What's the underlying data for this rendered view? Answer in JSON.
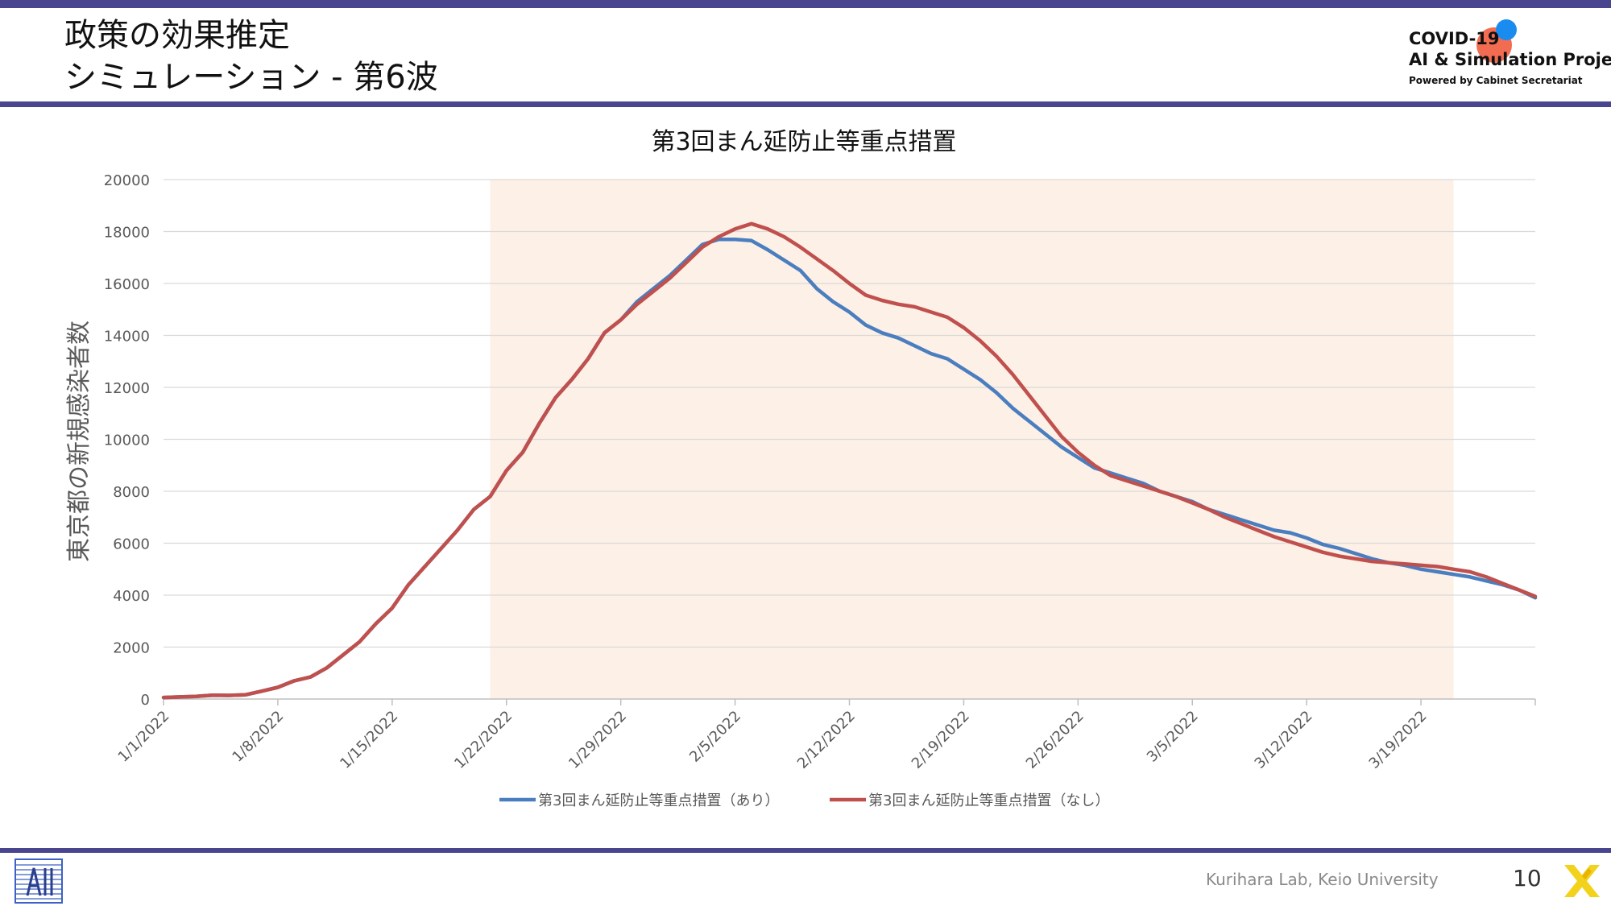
{
  "slide": {
    "title_line1": "政策の効果推定",
    "title_line2": "シミュレーション - 第6波"
  },
  "logo": {
    "line1": "COVID-19",
    "line2": "AI & Simulation Project",
    "line3": "Powered by Cabinet Secretariat"
  },
  "footer": {
    "lab": "Kurihara Lab, Keio University",
    "page": "10"
  },
  "colors": {
    "accent_bar": "#49468f",
    "series_with": "#4a7ebf",
    "series_without": "#c0504d",
    "shaded_period": "#fdf0e6"
  },
  "chart_data": {
    "type": "line",
    "title": "第3回まん延防止等重点措置",
    "ylabel": "東京都の新規感染者数",
    "xlabel": "",
    "ylim": [
      0,
      20000
    ],
    "yticks": [
      0,
      2000,
      4000,
      6000,
      8000,
      10000,
      12000,
      14000,
      16000,
      18000,
      20000
    ],
    "x_start": "1/1/2022",
    "x_end": "3/26/2022",
    "x_tick_labels": [
      "1/1/2022",
      "1/8/2022",
      "1/15/2022",
      "1/22/2022",
      "1/29/2022",
      "2/5/2022",
      "2/12/2022",
      "2/19/2022",
      "2/26/2022",
      "3/5/2022",
      "3/12/2022",
      "3/19/2022"
    ],
    "shaded_period": [
      "1/21/2022",
      "3/21/2022"
    ],
    "grid": true,
    "legend_position": "bottom",
    "series": [
      {
        "name": "第3回まん延防止等重点措置（あり）",
        "color": "#4a7ebf",
        "points": [
          [
            "1/1/2022",
            60
          ],
          [
            "1/2/2022",
            80
          ],
          [
            "1/3/2022",
            100
          ],
          [
            "1/4/2022",
            150
          ],
          [
            "1/5/2022",
            140
          ],
          [
            "1/6/2022",
            160
          ],
          [
            "1/7/2022",
            300
          ],
          [
            "1/8/2022",
            450
          ],
          [
            "1/9/2022",
            700
          ],
          [
            "1/10/2022",
            850
          ],
          [
            "1/11/2022",
            1200
          ],
          [
            "1/12/2022",
            1700
          ],
          [
            "1/13/2022",
            2200
          ],
          [
            "1/14/2022",
            2900
          ],
          [
            "1/15/2022",
            3500
          ],
          [
            "1/16/2022",
            4400
          ],
          [
            "1/17/2022",
            5100
          ],
          [
            "1/18/2022",
            5800
          ],
          [
            "1/19/2022",
            6500
          ],
          [
            "1/20/2022",
            7300
          ],
          [
            "1/21/2022",
            7800
          ],
          [
            "1/22/2022",
            8800
          ],
          [
            "1/23/2022",
            9500
          ],
          [
            "1/24/2022",
            10600
          ],
          [
            "1/25/2022",
            11600
          ],
          [
            "1/26/2022",
            12300
          ],
          [
            "1/27/2022",
            13100
          ],
          [
            "1/28/2022",
            14100
          ],
          [
            "1/29/2022",
            14600
          ],
          [
            "1/30/2022",
            15300
          ],
          [
            "1/31/2022",
            15800
          ],
          [
            "2/1/2022",
            16300
          ],
          [
            "2/2/2022",
            16900
          ],
          [
            "2/3/2022",
            17500
          ],
          [
            "2/4/2022",
            17700
          ],
          [
            "2/5/2022",
            17700
          ],
          [
            "2/6/2022",
            17650
          ],
          [
            "2/7/2022",
            17300
          ],
          [
            "2/8/2022",
            16900
          ],
          [
            "2/9/2022",
            16500
          ],
          [
            "2/10/2022",
            15800
          ],
          [
            "2/11/2022",
            15300
          ],
          [
            "2/12/2022",
            14900
          ],
          [
            "2/13/2022",
            14400
          ],
          [
            "2/14/2022",
            14100
          ],
          [
            "2/15/2022",
            13900
          ],
          [
            "2/16/2022",
            13600
          ],
          [
            "2/17/2022",
            13300
          ],
          [
            "2/18/2022",
            13100
          ],
          [
            "2/19/2022",
            12700
          ],
          [
            "2/20/2022",
            12300
          ],
          [
            "2/21/2022",
            11800
          ],
          [
            "2/22/2022",
            11200
          ],
          [
            "2/23/2022",
            10700
          ],
          [
            "2/24/2022",
            10200
          ],
          [
            "2/25/2022",
            9700
          ],
          [
            "2/26/2022",
            9300
          ],
          [
            "2/27/2022",
            8900
          ],
          [
            "2/28/2022",
            8700
          ],
          [
            "3/1/2022",
            8500
          ],
          [
            "3/2/2022",
            8300
          ],
          [
            "3/3/2022",
            8000
          ],
          [
            "3/4/2022",
            7800
          ],
          [
            "3/5/2022",
            7600
          ],
          [
            "3/6/2022",
            7300
          ],
          [
            "3/7/2022",
            7100
          ],
          [
            "3/8/2022",
            6900
          ],
          [
            "3/9/2022",
            6700
          ],
          [
            "3/10/2022",
            6500
          ],
          [
            "3/11/2022",
            6400
          ],
          [
            "3/12/2022",
            6200
          ],
          [
            "3/13/2022",
            5950
          ],
          [
            "3/14/2022",
            5800
          ],
          [
            "3/15/2022",
            5600
          ],
          [
            "3/16/2022",
            5400
          ],
          [
            "3/17/2022",
            5250
          ],
          [
            "3/18/2022",
            5150
          ],
          [
            "3/19/2022",
            5000
          ],
          [
            "3/20/2022",
            4900
          ],
          [
            "3/21/2022",
            4800
          ],
          [
            "3/22/2022",
            4700
          ],
          [
            "3/23/2022",
            4550
          ],
          [
            "3/24/2022",
            4400
          ],
          [
            "3/25/2022",
            4200
          ],
          [
            "3/26/2022",
            3900
          ]
        ]
      },
      {
        "name": "第3回まん延防止等重点措置（なし）",
        "color": "#c0504d",
        "points": [
          [
            "1/1/2022",
            60
          ],
          [
            "1/2/2022",
            80
          ],
          [
            "1/3/2022",
            100
          ],
          [
            "1/4/2022",
            150
          ],
          [
            "1/5/2022",
            140
          ],
          [
            "1/6/2022",
            160
          ],
          [
            "1/7/2022",
            300
          ],
          [
            "1/8/2022",
            450
          ],
          [
            "1/9/2022",
            700
          ],
          [
            "1/10/2022",
            850
          ],
          [
            "1/11/2022",
            1200
          ],
          [
            "1/12/2022",
            1700
          ],
          [
            "1/13/2022",
            2200
          ],
          [
            "1/14/2022",
            2900
          ],
          [
            "1/15/2022",
            3500
          ],
          [
            "1/16/2022",
            4400
          ],
          [
            "1/17/2022",
            5100
          ],
          [
            "1/18/2022",
            5800
          ],
          [
            "1/19/2022",
            6500
          ],
          [
            "1/20/2022",
            7300
          ],
          [
            "1/21/2022",
            7800
          ],
          [
            "1/22/2022",
            8800
          ],
          [
            "1/23/2022",
            9500
          ],
          [
            "1/24/2022",
            10600
          ],
          [
            "1/25/2022",
            11600
          ],
          [
            "1/26/2022",
            12300
          ],
          [
            "1/27/2022",
            13100
          ],
          [
            "1/28/2022",
            14100
          ],
          [
            "1/29/2022",
            14600
          ],
          [
            "1/30/2022",
            15200
          ],
          [
            "1/31/2022",
            15700
          ],
          [
            "2/1/2022",
            16200
          ],
          [
            "2/2/2022",
            16800
          ],
          [
            "2/3/2022",
            17400
          ],
          [
            "2/4/2022",
            17800
          ],
          [
            "2/5/2022",
            18100
          ],
          [
            "2/6/2022",
            18300
          ],
          [
            "2/7/2022",
            18100
          ],
          [
            "2/8/2022",
            17800
          ],
          [
            "2/9/2022",
            17400
          ],
          [
            "2/10/2022",
            16950
          ],
          [
            "2/11/2022",
            16500
          ],
          [
            "2/12/2022",
            16000
          ],
          [
            "2/13/2022",
            15550
          ],
          [
            "2/14/2022",
            15350
          ],
          [
            "2/15/2022",
            15200
          ],
          [
            "2/16/2022",
            15100
          ],
          [
            "2/17/2022",
            14900
          ],
          [
            "2/18/2022",
            14700
          ],
          [
            "2/19/2022",
            14300
          ],
          [
            "2/20/2022",
            13800
          ],
          [
            "2/21/2022",
            13200
          ],
          [
            "2/22/2022",
            12500
          ],
          [
            "2/23/2022",
            11700
          ],
          [
            "2/24/2022",
            10900
          ],
          [
            "2/25/2022",
            10100
          ],
          [
            "2/26/2022",
            9500
          ],
          [
            "2/27/2022",
            9000
          ],
          [
            "2/28/2022",
            8600
          ],
          [
            "3/1/2022",
            8400
          ],
          [
            "3/2/2022",
            8200
          ],
          [
            "3/3/2022",
            8000
          ],
          [
            "3/4/2022",
            7800
          ],
          [
            "3/5/2022",
            7550
          ],
          [
            "3/6/2022",
            7300
          ],
          [
            "3/7/2022",
            7000
          ],
          [
            "3/8/2022",
            6750
          ],
          [
            "3/9/2022",
            6500
          ],
          [
            "3/10/2022",
            6250
          ],
          [
            "3/11/2022",
            6050
          ],
          [
            "3/12/2022",
            5850
          ],
          [
            "3/13/2022",
            5650
          ],
          [
            "3/14/2022",
            5500
          ],
          [
            "3/15/2022",
            5400
          ],
          [
            "3/16/2022",
            5300
          ],
          [
            "3/17/2022",
            5250
          ],
          [
            "3/18/2022",
            5200
          ],
          [
            "3/19/2022",
            5150
          ],
          [
            "3/20/2022",
            5100
          ],
          [
            "3/21/2022",
            5000
          ],
          [
            "3/22/2022",
            4900
          ],
          [
            "3/23/2022",
            4700
          ],
          [
            "3/24/2022",
            4450
          ],
          [
            "3/25/2022",
            4200
          ],
          [
            "3/26/2022",
            3950
          ]
        ]
      }
    ]
  }
}
